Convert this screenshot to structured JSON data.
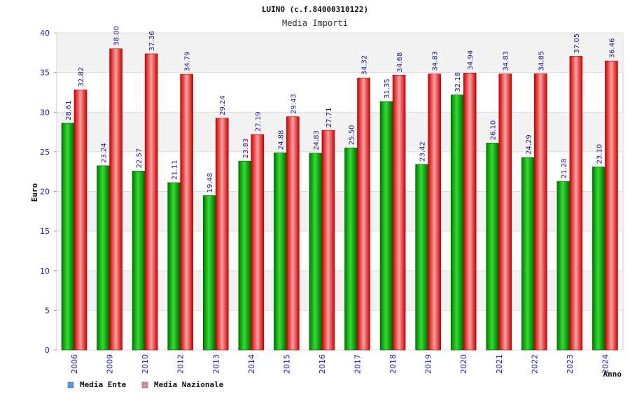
{
  "chart_data": {
    "type": "bar",
    "title": "LUINO (c.f.84000310122)",
    "subtitle": "Media Importi",
    "xlabel": "Anno",
    "ylabel": "Euro",
    "ylim": [
      0,
      40
    ],
    "yticks": [
      0,
      5,
      10,
      15,
      20,
      25,
      30,
      35,
      40
    ],
    "grid": true,
    "legend_position": "bottom-left",
    "categories": [
      "2006",
      "2009",
      "2010",
      "2012",
      "2013",
      "2014",
      "2015",
      "2016",
      "2017",
      "2018",
      "2019",
      "2020",
      "2021",
      "2022",
      "2023",
      "2024"
    ],
    "series": [
      {
        "name": "Media Ente",
        "color": "#22bb22",
        "legend_color": "#5599ee",
        "values": [
          28.61,
          23.24,
          22.57,
          21.11,
          19.48,
          23.83,
          24.88,
          24.83,
          25.5,
          31.35,
          23.42,
          32.18,
          26.1,
          24.29,
          21.28,
          23.1
        ],
        "labels": [
          "28.61",
          "23.24",
          "22.57",
          "21.11",
          "19.48",
          "23.83",
          "24.88",
          "24.83",
          "25.50",
          "31.35",
          "23.42",
          "32.18",
          "26.10",
          "24.29",
          "21.28",
          "23.10"
        ]
      },
      {
        "name": "Media Nazionale",
        "color": "#ee2222",
        "legend_color": "#dd88aa",
        "values": [
          32.82,
          38.0,
          37.36,
          34.79,
          29.24,
          27.19,
          29.43,
          27.71,
          34.32,
          34.68,
          34.83,
          34.94,
          34.83,
          34.85,
          37.05,
          36.46
        ],
        "labels": [
          "32.82",
          "38.00",
          "37.36",
          "34.79",
          "29.24",
          "27.19",
          "29.43",
          "27.71",
          "34.32",
          "34.68",
          "34.83",
          "34.94",
          "34.83",
          "34.85",
          "37.05",
          "36.46"
        ]
      }
    ]
  }
}
